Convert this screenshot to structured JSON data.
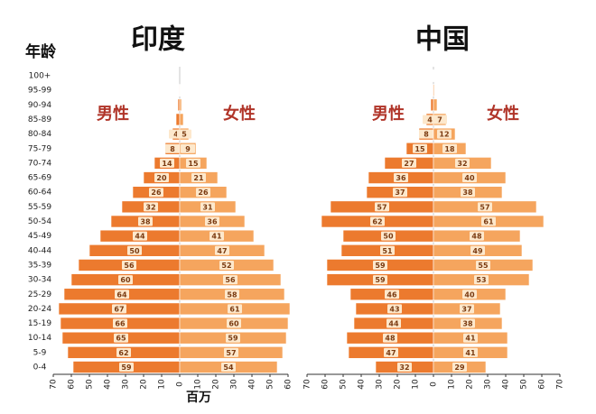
{
  "chart_data": [
    {
      "type": "pyramid",
      "title": "印度",
      "y_label": "年龄",
      "x_label": "百万",
      "categories": [
        "100+",
        "95-99",
        "90-94",
        "85-89",
        "80-84",
        "75-79",
        "70-74",
        "65-69",
        "60-64",
        "55-59",
        "50-54",
        "45-49",
        "40-44",
        "35-39",
        "30-34",
        "25-29",
        "20-24",
        "15-19",
        "10-14",
        "5-9",
        "0-4"
      ],
      "series": [
        {
          "name": "男性",
          "color": "#ec7a2e",
          "values": [
            0,
            0.3,
            1,
            2,
            4,
            8,
            14,
            20,
            26,
            32,
            38,
            44,
            50,
            56,
            60,
            64,
            67,
            66,
            65,
            62,
            59
          ],
          "value_labels": [
            null,
            null,
            null,
            null,
            "4",
            "8",
            "14",
            "20",
            "26",
            "32",
            "38",
            "44",
            "50",
            "56",
            "60",
            "64",
            "67",
            "66",
            "65",
            "62",
            "59"
          ]
        },
        {
          "name": "女性",
          "color": "#f5a55e",
          "values": [
            0,
            0.3,
            1,
            2,
            5,
            9,
            15,
            21,
            26,
            31,
            36,
            41,
            47,
            52,
            56,
            58,
            61,
            60,
            59,
            57,
            54
          ],
          "value_labels": [
            null,
            null,
            null,
            null,
            "5",
            "9",
            "15",
            "21",
            "26",
            "31",
            "36",
            "41",
            "47",
            "52",
            "56",
            "58",
            "61",
            "60",
            "59",
            "57",
            "54"
          ]
        }
      ],
      "xlim": [
        -70,
        60
      ],
      "xticks": [
        {
          "value": -70,
          "label": "70"
        },
        {
          "value": -60,
          "label": "60"
        },
        {
          "value": -50,
          "label": "50"
        },
        {
          "value": -40,
          "label": "40"
        },
        {
          "value": -30,
          "label": "30"
        },
        {
          "value": -20,
          "label": "20"
        },
        {
          "value": -10,
          "label": "10"
        },
        0,
        10,
        20,
        30,
        40,
        50,
        60
      ]
    },
    {
      "type": "pyramid",
      "title": "中国",
      "series": [
        {
          "name": "男性",
          "color": "#ec7a2e",
          "values": [
            0.1,
            0.4,
            1.5,
            4,
            8,
            15,
            27,
            36,
            37,
            57,
            62,
            50,
            51,
            59,
            59,
            46,
            43,
            44,
            48,
            47,
            32
          ],
          "value_labels": [
            null,
            null,
            null,
            "4",
            "8",
            "15",
            "27",
            "36",
            "37",
            "57",
            "62",
            "50",
            "51",
            "59",
            "59",
            "46",
            "43",
            "44",
            "48",
            "47",
            "32"
          ]
        },
        {
          "name": "女性",
          "color": "#f5a55e",
          "values": [
            0.1,
            0.5,
            2,
            7,
            12,
            18,
            32,
            40,
            38,
            57,
            61,
            48,
            49,
            55,
            53,
            40,
            37,
            38,
            41,
            41,
            29
          ],
          "value_labels": [
            null,
            null,
            null,
            "7",
            "12",
            "18",
            "32",
            "40",
            "38",
            "57",
            "61",
            "48",
            "49",
            "55",
            "53",
            "40",
            "37",
            "38",
            "41",
            "41",
            "29"
          ]
        }
      ],
      "xlim": [
        -70,
        70
      ],
      "xticks": [
        {
          "value": -70,
          "label": "70"
        },
        {
          "value": -60,
          "label": "60"
        },
        {
          "value": -50,
          "label": "50"
        },
        {
          "value": -40,
          "label": "40"
        },
        {
          "value": -30,
          "label": "30"
        },
        {
          "value": -20,
          "label": "20"
        },
        {
          "value": -10,
          "label": "10"
        },
        0,
        10,
        20,
        30,
        40,
        50,
        60,
        70
      ]
    }
  ]
}
